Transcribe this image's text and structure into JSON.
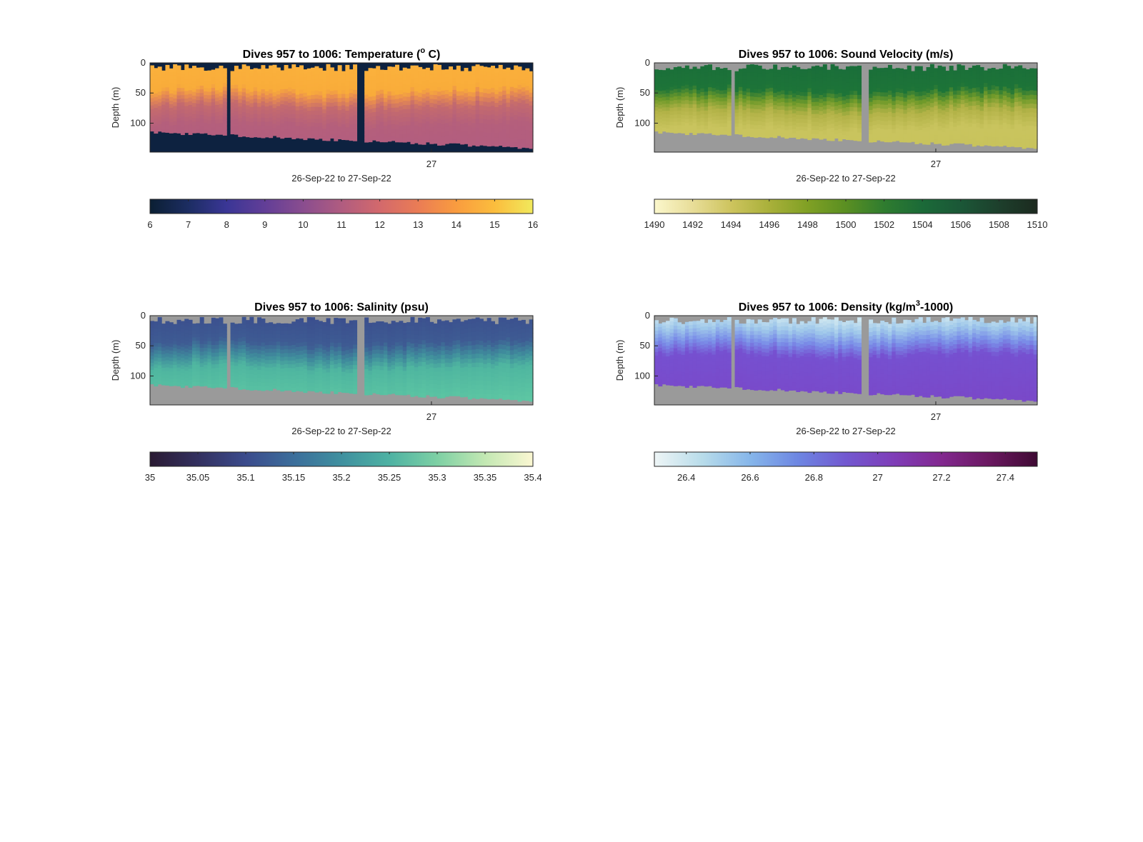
{
  "chart_data": [
    {
      "type": "heatmap",
      "title_main": "Dives 957 to 1006: Temperature (",
      "title_sup": "o",
      "title_tail": " C)",
      "xlabel": "26-Sep-22 to 27-Sep-22",
      "ylabel": "Depth (m)",
      "x_tick_labels": [
        "27"
      ],
      "x_tick_positions": [
        0.735
      ],
      "y_tick_labels": [
        "0",
        "50",
        "100"
      ],
      "y_tick_values": [
        0,
        50,
        100
      ],
      "ylim": [
        0,
        148
      ],
      "x_range_dives": [
        957,
        1006
      ],
      "field": "temperature",
      "fill_color": "#0d2240",
      "stops": [
        [
          0.0,
          "#fbb13c"
        ],
        [
          0.3,
          "#f9ac3a"
        ],
        [
          0.38,
          "#e88c50"
        ],
        [
          0.5,
          "#c46a6e"
        ],
        [
          0.7,
          "#b45f7c"
        ],
        [
          1.0,
          "#b25d80"
        ]
      ],
      "colorbar": {
        "min": 6,
        "max": 16,
        "tick_labels": [
          "6",
          "7",
          "8",
          "9",
          "10",
          "11",
          "12",
          "13",
          "14",
          "15",
          "16"
        ],
        "tick_values": [
          6,
          7,
          8,
          9,
          10,
          11,
          12,
          13,
          14,
          15,
          16
        ],
        "colors": [
          "#0b1f33",
          "#1c2d62",
          "#3a3696",
          "#623e97",
          "#8a4d8f",
          "#b05c80",
          "#d3696c",
          "#ea7c55",
          "#f99c3f",
          "#fbbd3d",
          "#f1e95c"
        ]
      }
    },
    {
      "type": "heatmap",
      "title_main": "Dives 957 to 1006: Sound Velocity (m/s)",
      "title_sup": "",
      "title_tail": "",
      "xlabel": "26-Sep-22 to 27-Sep-22",
      "ylabel": "Depth (m)",
      "x_tick_labels": [
        "27"
      ],
      "x_tick_positions": [
        0.735
      ],
      "y_tick_labels": [
        "0",
        "50",
        "100"
      ],
      "y_tick_values": [
        0,
        50,
        100
      ],
      "ylim": [
        0,
        148
      ],
      "x_range_dives": [
        957,
        1006
      ],
      "field": "sound-velocity",
      "fill_color": "#9a9a9a",
      "stops": [
        [
          0.0,
          "#1a6e3a"
        ],
        [
          0.3,
          "#1d7438"
        ],
        [
          0.42,
          "#6f9a2a"
        ],
        [
          0.55,
          "#b2b247"
        ],
        [
          0.75,
          "#c9c45e"
        ],
        [
          1.0,
          "#c8c35c"
        ]
      ],
      "colorbar": {
        "min": 1490,
        "max": 1510,
        "tick_labels": [
          "1490",
          "1492",
          "1494",
          "1496",
          "1498",
          "1500",
          "1502",
          "1504",
          "1506",
          "1508",
          "1510"
        ],
        "tick_values": [
          1490,
          1492,
          1494,
          1496,
          1498,
          1500,
          1502,
          1504,
          1506,
          1508,
          1510
        ],
        "colors": [
          "#fbf7cc",
          "#e8dd98",
          "#cdc45e",
          "#a9b03a",
          "#80a024",
          "#5a8f22",
          "#2f7c2f",
          "#1b6a38",
          "#1b5737",
          "#1d3f2c",
          "#1c2a1f"
        ]
      }
    },
    {
      "type": "heatmap",
      "title_main": "Dives 957 to 1006: Salinity (psu)",
      "title_sup": "",
      "title_tail": "",
      "xlabel": "26-Sep-22 to 27-Sep-22",
      "ylabel": "Depth (m)",
      "x_tick_labels": [
        "27"
      ],
      "x_tick_positions": [
        0.735
      ],
      "y_tick_labels": [
        "0",
        "50",
        "100"
      ],
      "y_tick_values": [
        0,
        50,
        100
      ],
      "ylim": [
        0,
        148
      ],
      "x_range_dives": [
        957,
        1006
      ],
      "field": "salinity",
      "fill_color": "#9a9a9a",
      "stops": [
        [
          0.0,
          "#3b4f8e"
        ],
        [
          0.3,
          "#3e5b93"
        ],
        [
          0.45,
          "#3f8a9c"
        ],
        [
          0.6,
          "#4fb6a0"
        ],
        [
          1.0,
          "#5ec7a3"
        ]
      ],
      "colorbar": {
        "min": 35,
        "max": 35.4,
        "tick_labels": [
          "35",
          "35.05",
          "35.1",
          "35.15",
          "35.2",
          "35.25",
          "35.3",
          "35.35",
          "35.4"
        ],
        "tick_values": [
          35,
          35.05,
          35.1,
          35.15,
          35.2,
          35.25,
          35.3,
          35.35,
          35.4
        ],
        "colors": [
          "#2a1a33",
          "#33305f",
          "#3b4b8c",
          "#3c6e9b",
          "#3f909f",
          "#4eb2a3",
          "#7dd0a4",
          "#c3e8b3",
          "#fbf7d2"
        ]
      }
    },
    {
      "type": "heatmap",
      "title_main": "Dives 957 to 1006: Density (kg/m",
      "title_sup": "3",
      "title_tail": "-1000)",
      "xlabel": "26-Sep-22 to 27-Sep-22",
      "ylabel": "Depth (m)",
      "x_tick_labels": [
        "27"
      ],
      "x_tick_positions": [
        0.735
      ],
      "y_tick_labels": [
        "0",
        "50",
        "100"
      ],
      "y_tick_values": [
        0,
        50,
        100
      ],
      "ylim": [
        0,
        148
      ],
      "x_range_dives": [
        957,
        1006
      ],
      "field": "density",
      "fill_color": "#9a9a9a",
      "stops": [
        [
          0.0,
          "#cde6f0"
        ],
        [
          0.15,
          "#9fc8ea"
        ],
        [
          0.3,
          "#7a8ee8"
        ],
        [
          0.45,
          "#7650d0"
        ],
        [
          1.0,
          "#7a48c8"
        ]
      ],
      "colorbar": {
        "min": 26.3,
        "max": 27.5,
        "tick_labels": [
          "26.4",
          "26.6",
          "26.8",
          "27",
          "27.2",
          "27.4"
        ],
        "tick_values": [
          26.4,
          26.6,
          26.8,
          27,
          27.2,
          27.4
        ],
        "colors": [
          "#eef5f6",
          "#b8dcea",
          "#86b6ea",
          "#6d86e2",
          "#7258d0",
          "#7f3db8",
          "#82288f",
          "#6a1860",
          "#3f0a33"
        ]
      }
    }
  ]
}
